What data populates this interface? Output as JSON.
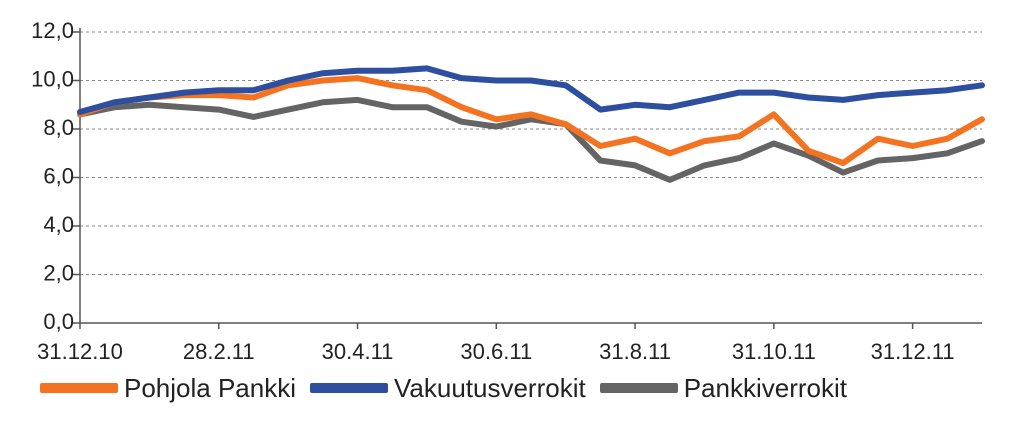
{
  "chart_data": {
    "type": "line",
    "ylim": [
      0,
      12
    ],
    "yticks": [
      "0,0",
      "2,0",
      "4,0",
      "6,0",
      "8,0",
      "10,0",
      "12,0"
    ],
    "xticks": [
      "31.12.10",
      "28.2.11",
      "30.4.11",
      "30.6.11",
      "31.8.11",
      "31.10.11",
      "31.12.11"
    ],
    "x": [
      "31.12.10",
      "15.1.11",
      "31.1.11",
      "15.2.11",
      "28.2.11",
      "15.3.11",
      "31.3.11",
      "15.4.11",
      "30.4.11",
      "15.5.11",
      "31.5.11",
      "15.6.11",
      "30.6.11",
      "15.7.11",
      "31.7.11",
      "15.8.11",
      "31.8.11",
      "15.9.11",
      "30.9.11",
      "15.10.11",
      "31.10.11",
      "15.11.11",
      "30.11.11",
      "15.12.11",
      "31.12.11",
      "15.1.12",
      "25.1.12"
    ],
    "grid": true,
    "legend_position": "bottom",
    "series": [
      {
        "name": "Pohjola Pankki",
        "color": "#f47321",
        "values": [
          8.6,
          9.1,
          9.3,
          9.4,
          9.4,
          9.3,
          9.8,
          10.0,
          10.1,
          9.8,
          9.6,
          8.9,
          8.4,
          8.6,
          8.2,
          7.3,
          7.6,
          7.0,
          7.5,
          7.7,
          8.6,
          7.1,
          6.6,
          7.6,
          7.3,
          7.6,
          8.4
        ]
      },
      {
        "name": "Vakuutusverrokit",
        "color": "#2e4ea0",
        "values": [
          8.7,
          9.1,
          9.3,
          9.5,
          9.6,
          9.6,
          10.0,
          10.3,
          10.4,
          10.4,
          10.5,
          10.1,
          10.0,
          10.0,
          9.8,
          8.8,
          9.0,
          8.9,
          9.2,
          9.5,
          9.5,
          9.3,
          9.2,
          9.4,
          9.5,
          9.6,
          9.8
        ]
      },
      {
        "name": "Pankkiverrokit",
        "color": "#646464",
        "values": [
          8.6,
          8.9,
          9.0,
          8.9,
          8.8,
          8.5,
          8.8,
          9.1,
          9.2,
          8.9,
          8.9,
          8.3,
          8.1,
          8.4,
          8.2,
          6.7,
          6.5,
          5.9,
          6.5,
          6.8,
          7.4,
          6.9,
          6.2,
          6.7,
          6.8,
          7.0,
          7.5
        ]
      }
    ]
  }
}
